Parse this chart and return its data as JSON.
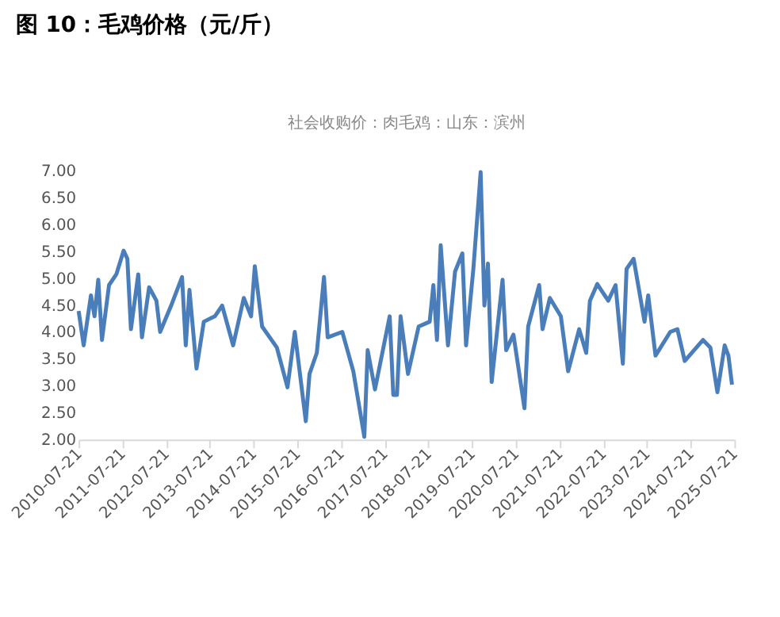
{
  "chart_data": {
    "type": "line",
    "title": "图 10：毛鸡价格（元/斤）",
    "subtitle": "社会收购价：肉毛鸡：山东：滨州",
    "x": [
      "2010-07-21",
      "2010-09",
      "2010-11",
      "2010-12",
      "2011-01",
      "2011-02",
      "2011-04",
      "2011-06",
      "2011-08",
      "2011-09",
      "2011-10",
      "2011-12",
      "2012-01",
      "2012-03",
      "2012-05",
      "2012-06",
      "2012-09",
      "2012-12",
      "2013-01",
      "2013-02",
      "2013-04",
      "2013-06",
      "2013-09",
      "2013-11",
      "2014-02",
      "2014-05",
      "2014-07",
      "2014-08",
      "2014-10",
      "2015-02",
      "2015-05",
      "2015-07",
      "2015-10",
      "2015-11",
      "2016-01",
      "2016-03",
      "2016-04",
      "2016-08",
      "2016-11",
      "2017-02",
      "2017-03",
      "2017-05",
      "2017-09",
      "2017-10",
      "2017-11",
      "2017-12",
      "2018-02",
      "2018-05",
      "2018-08",
      "2018-09",
      "2018-10",
      "2018-11",
      "2019-01",
      "2019-03",
      "2019-05",
      "2019-06",
      "2019-08",
      "2019-10",
      "2019-11",
      "2019-12",
      "2020-01",
      "2020-04",
      "2020-05",
      "2020-07",
      "2020-10",
      "2020-11",
      "2021-02",
      "2021-03",
      "2021-05",
      "2021-08",
      "2021-10",
      "2022-01",
      "2022-03",
      "2022-04",
      "2022-06",
      "2022-09",
      "2022-11",
      "2023-01",
      "2023-02",
      "2023-04",
      "2023-07",
      "2023-08",
      "2023-10",
      "2024-02",
      "2024-04",
      "2024-06",
      "2024-11",
      "2025-01",
      "2025-03",
      "2025-05",
      "2025-06",
      "2025-07"
    ],
    "series": [
      {
        "color": "#4a7ebb",
        "values": [
          4.39,
          3.75,
          4.68,
          4.29,
          4.97,
          3.85,
          4.87,
          5.07,
          5.51,
          5.36,
          4.05,
          5.07,
          3.9,
          4.83,
          4.58,
          4.0,
          4.49,
          5.02,
          3.75,
          4.78,
          3.32,
          4.19,
          4.29,
          4.49,
          3.75,
          4.63,
          4.29,
          5.22,
          4.1,
          3.71,
          2.97,
          4.0,
          2.34,
          3.22,
          3.61,
          5.02,
          3.9,
          4.0,
          3.27,
          2.05,
          3.66,
          2.93,
          4.29,
          2.83,
          2.83,
          4.29,
          3.22,
          4.1,
          4.19,
          4.87,
          3.85,
          5.61,
          3.75,
          5.12,
          5.46,
          3.75,
          5.17,
          6.97,
          4.49,
          5.27,
          3.07,
          4.97,
          3.66,
          3.95,
          2.58,
          4.1,
          4.87,
          4.05,
          4.63,
          4.29,
          3.27,
          4.05,
          3.61,
          4.58,
          4.89,
          4.58,
          4.87,
          3.41,
          5.17,
          5.36,
          4.19,
          4.68,
          3.56,
          4.0,
          4.05,
          3.46,
          3.85,
          3.71,
          2.88,
          3.75,
          3.56,
          3.02
        ]
      }
    ],
    "xlim": [
      "2010-07-21",
      "2025-07-21"
    ],
    "xticks": [
      "2010-07-21",
      "2011-07-21",
      "2012-07-21",
      "2013-07-21",
      "2014-07-21",
      "2015-07-21",
      "2016-07-21",
      "2017-07-21",
      "2018-07-21",
      "2019-07-21",
      "2020-07-21",
      "2021-07-21",
      "2022-07-21",
      "2023-07-21",
      "2024-07-21",
      "2025-07-21"
    ],
    "ylim": [
      2,
      7
    ],
    "yticks": [
      {
        "value": 2,
        "label": "2.00"
      },
      {
        "value": 2.5,
        "label": "2.50"
      },
      {
        "value": 3,
        "label": "3.00"
      },
      {
        "value": 3.5,
        "label": "3.50"
      },
      {
        "value": 4,
        "label": "4.00"
      },
      {
        "value": 4.5,
        "label": "4.50"
      },
      {
        "value": 5,
        "label": "5.00"
      },
      {
        "value": 5.5,
        "label": "5.50"
      },
      {
        "value": 6,
        "label": "6.00"
      },
      {
        "value": 6.5,
        "label": "6.50"
      },
      {
        "value": 7,
        "label": "7.00"
      }
    ],
    "grid": false,
    "marker": "none",
    "line_style": "solid"
  }
}
